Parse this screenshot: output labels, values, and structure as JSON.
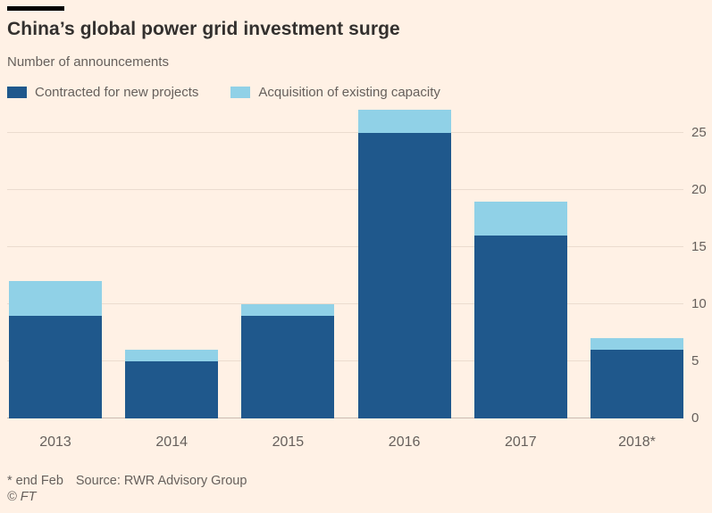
{
  "header": {
    "title": "China’s global power grid investment surge",
    "subtitle": "Number of announcements"
  },
  "legend": {
    "items": [
      {
        "label": "Contracted for new projects",
        "color": "#1F588C"
      },
      {
        "label": "Acquisition of existing capacity",
        "color": "#90D1E7"
      }
    ]
  },
  "chart_data": {
    "type": "bar",
    "stacked": true,
    "title": "China’s global power grid investment surge",
    "subtitle": "Number of announcements",
    "categories": [
      "2013",
      "2014",
      "2015",
      "2016",
      "2017",
      "2018*"
    ],
    "series": [
      {
        "name": "Contracted for new projects",
        "color": "#1F588C",
        "values": [
          9,
          5,
          9,
          25,
          16,
          6
        ]
      },
      {
        "name": "Acquisition of existing capacity",
        "color": "#90D1E7",
        "values": [
          3,
          1,
          1,
          2,
          3,
          1
        ]
      }
    ],
    "totals": [
      12,
      6,
      10,
      27,
      19,
      7
    ],
    "yticks": [
      0,
      5,
      10,
      15,
      20,
      25
    ],
    "ylim": [
      0,
      27.3
    ],
    "grid": true,
    "y_axis_side": "right",
    "legend_position": "top"
  },
  "footer": {
    "note": "* end Feb",
    "source": "Source: RWR Advisory Group",
    "credit": "© FT"
  },
  "colors": {
    "background": "#FFF1E5",
    "title_text": "#33302E",
    "muted_text": "#66605C",
    "rule": "#000000",
    "gridline": "#EBDCCF",
    "baseline": "#C9BCB1"
  }
}
